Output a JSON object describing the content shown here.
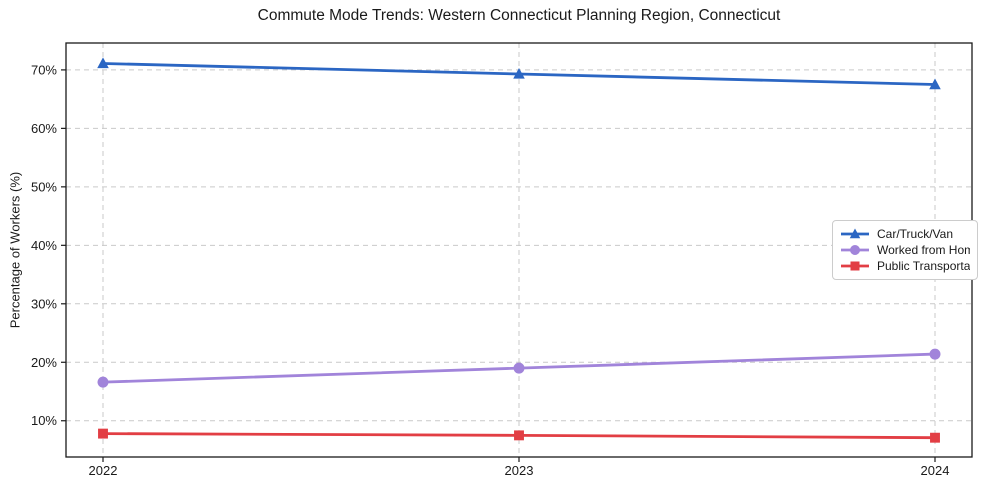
{
  "title": "Commute Mode Trends: Western Connecticut Planning Region, Connecticut",
  "chart_data": {
    "type": "line",
    "title": "Commute Mode Trends: Western Connecticut Planning Region, Connecticut",
    "xlabel": "",
    "ylabel": "Percentage of Workers (%)",
    "x": [
      2022,
      2023,
      2024
    ],
    "xtick_labels": [
      "2022",
      "2023",
      "2024"
    ],
    "series": [
      {
        "name": "Car/Truck/Van",
        "values": [
          71.1,
          69.3,
          67.5
        ],
        "color": "#2b66c3",
        "marker": "triangle"
      },
      {
        "name": "Worked from Home",
        "values": [
          16.6,
          19.0,
          21.4
        ],
        "color": "#a184da",
        "marker": "circle"
      },
      {
        "name": "Public Transportation",
        "values": [
          7.8,
          7.5,
          7.1
        ],
        "color": "#e23e44",
        "marker": "square"
      }
    ],
    "yticks": [
      10,
      20,
      30,
      40,
      50,
      60,
      70
    ],
    "ytick_labels": [
      "10%",
      "20%",
      "30%",
      "40%",
      "50%",
      "60%",
      "70%"
    ],
    "ylim": [
      3.8,
      74.6
    ],
    "grid": true,
    "grid_style": "dashed",
    "legend_position": "center right"
  },
  "style": {
    "grid_color": "#c9c9c9",
    "spine_color": "#1a1a1a",
    "text_color": "#1a1a1a",
    "background": "#ffffff",
    "legend_border": "#cccccc"
  }
}
